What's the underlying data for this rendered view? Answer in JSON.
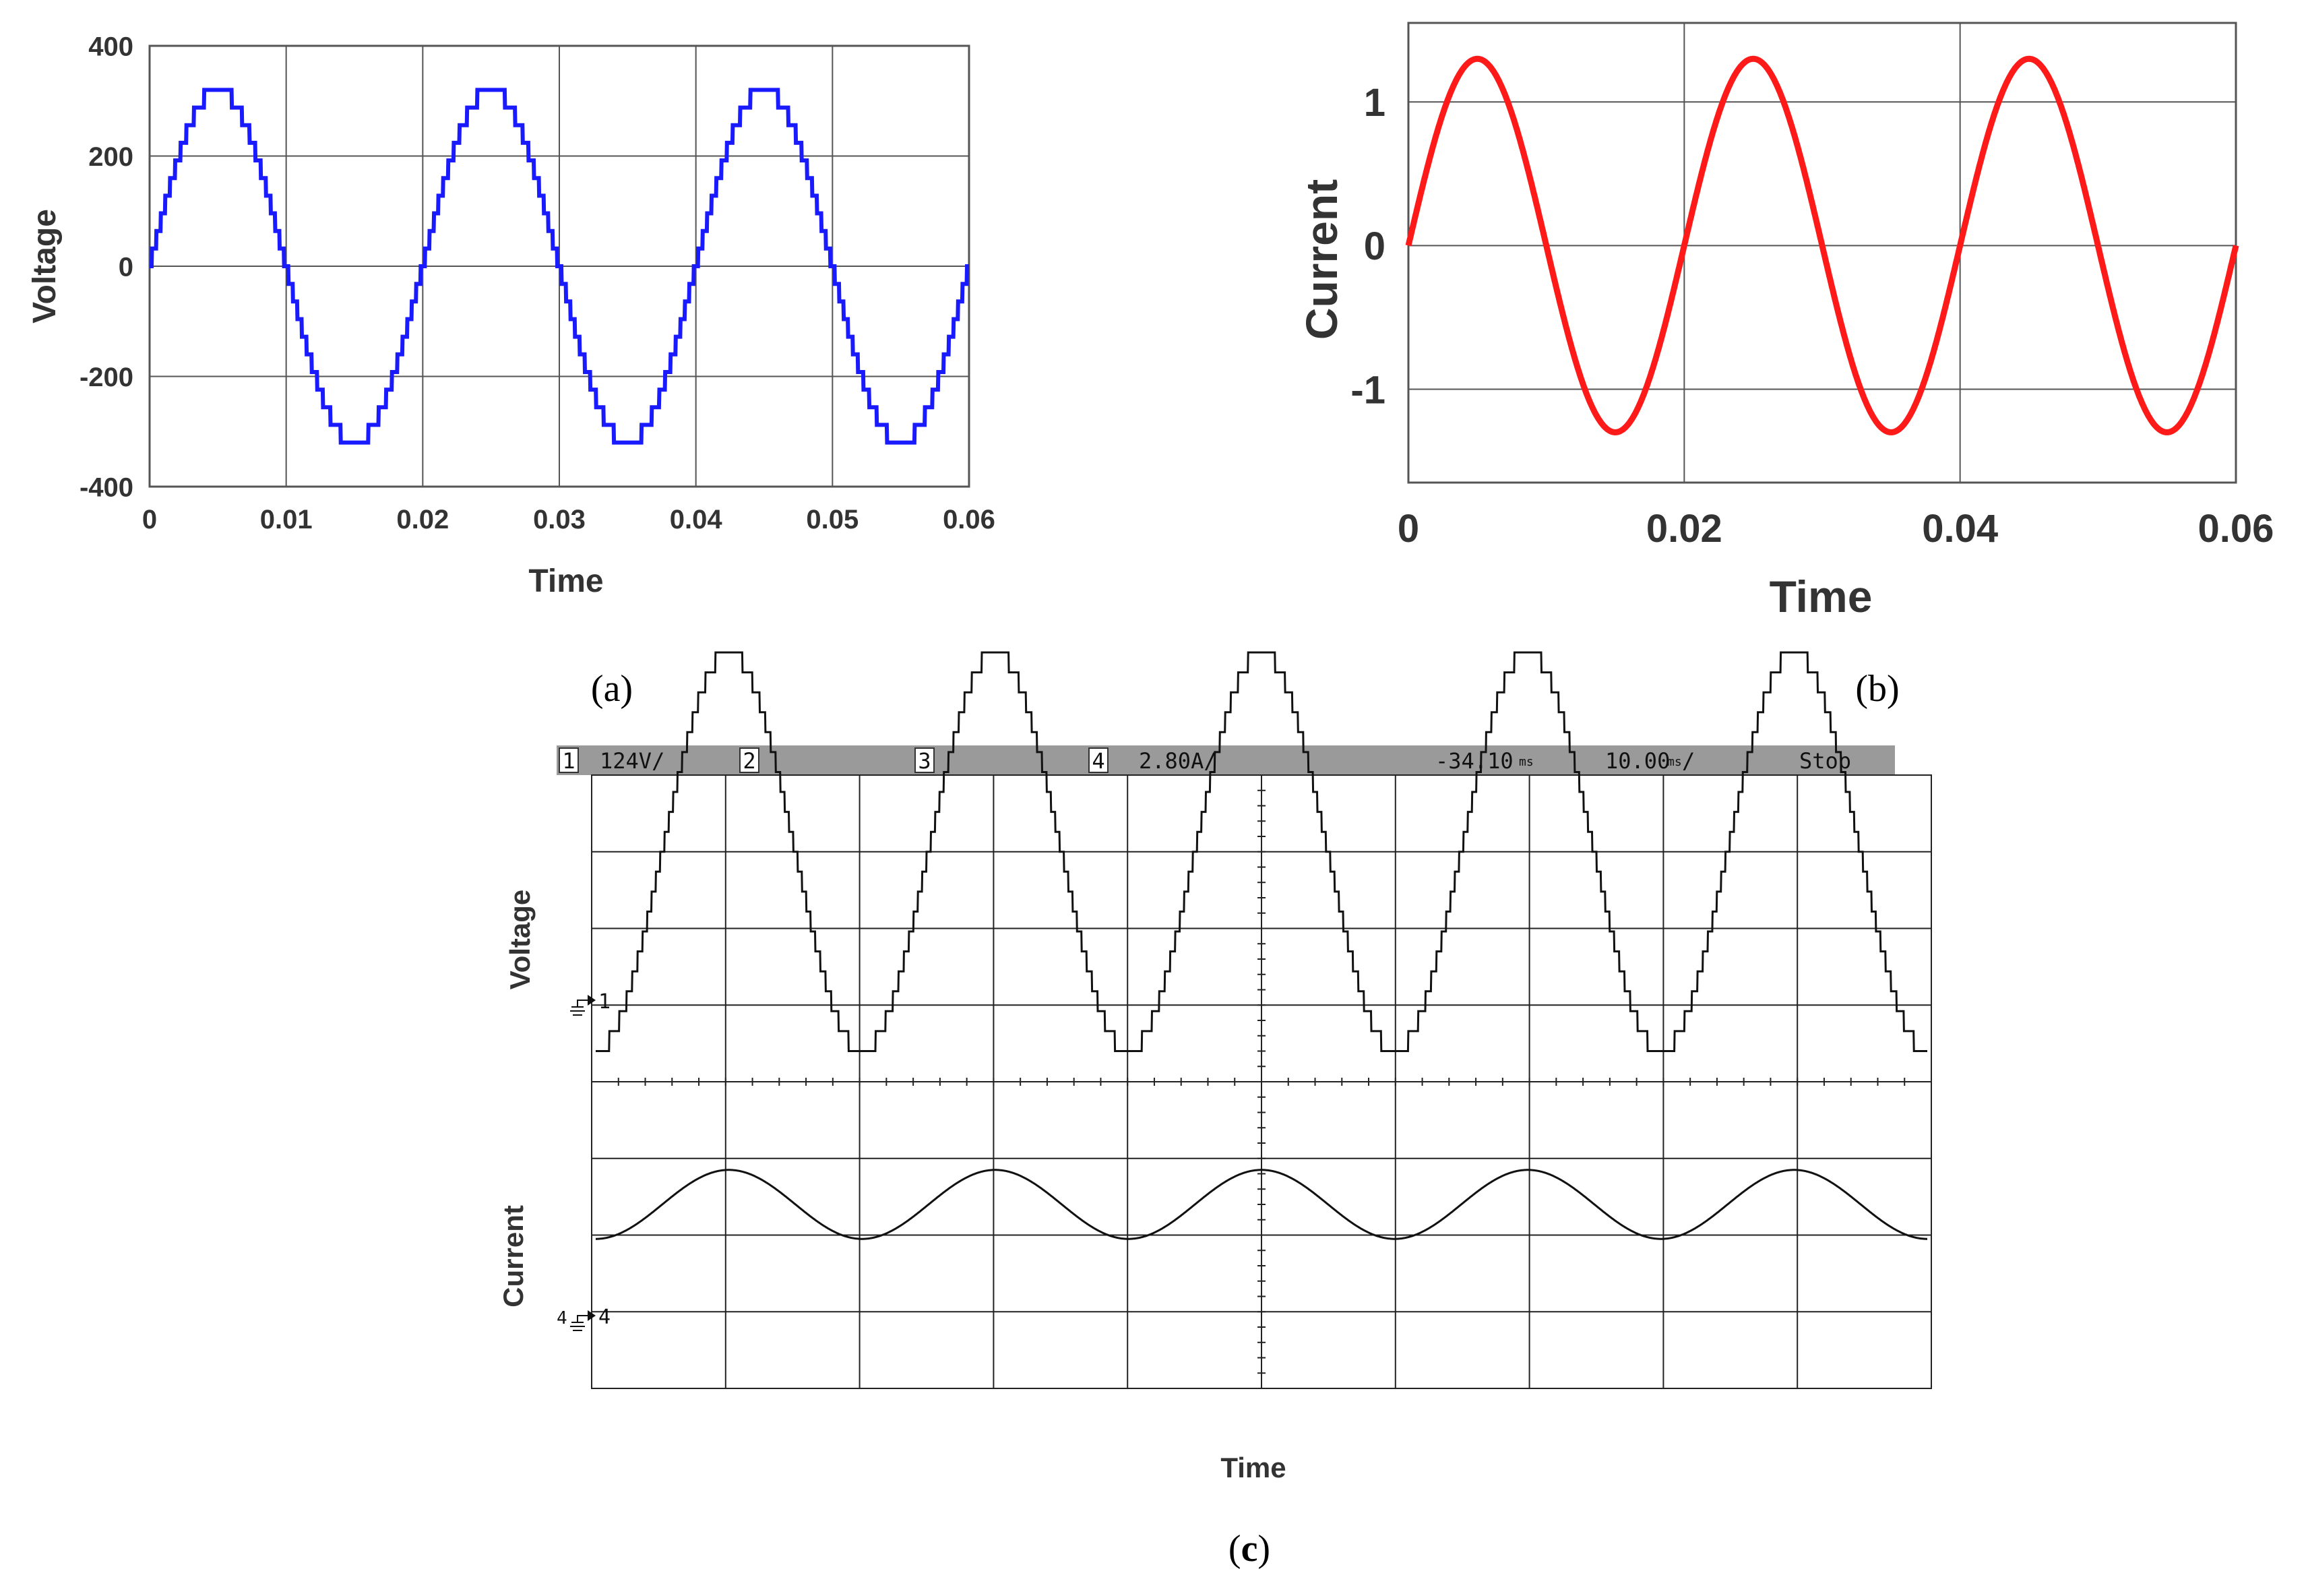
{
  "colors": {
    "voltage_sim": "#1a1aff",
    "current_sim": "#ff1a1a",
    "scope_trace": "#111111",
    "scope_bar": "#9a9a9a",
    "grid": "#555555"
  },
  "captions": {
    "a": "(a)",
    "b": "(b)",
    "c_open": "(",
    "c_letter": "c",
    "c_close": ")"
  },
  "chart_data": [
    {
      "id": "a",
      "type": "line",
      "xlabel": "Time",
      "ylabel": "Voltage",
      "xlim": [
        0,
        0.06
      ],
      "ylim": [
        -400,
        400
      ],
      "xticks": [
        "0",
        "0.01",
        "0.02",
        "0.03",
        "0.04",
        "0.05",
        "0.06"
      ],
      "yticks": [
        "400",
        "200",
        "0",
        "-200",
        "-400"
      ],
      "grid": true,
      "series": [
        {
          "waveform": "staircase sine",
          "frequency_hz": 50,
          "amplitude": 320,
          "levels_per_quarter": 10,
          "x_range": [
            0,
            0.06
          ]
        }
      ]
    },
    {
      "id": "b",
      "type": "line",
      "xlabel": "Time",
      "ylabel": "Current",
      "xlim": [
        0,
        0.06
      ],
      "ylim": [
        -1.65,
        1.55
      ],
      "xticks": [
        "0",
        "0.02",
        "0.04",
        "0.06"
      ],
      "yticks": [
        "1",
        "0",
        "-1"
      ],
      "grid": true,
      "series": [
        {
          "waveform": "sine",
          "frequency_hz": 50,
          "amplitude": 1.3,
          "x_range": [
            0,
            0.06
          ]
        }
      ]
    },
    {
      "id": "c",
      "type": "line",
      "xlabel": "Time",
      "ylabel_voltage": "Voltage",
      "ylabel_current": "Current",
      "grid": true,
      "divisions_x": 10,
      "divisions_y": 8,
      "series": [
        {
          "name": "Voltage",
          "waveform": "staircase sine",
          "channel": "1",
          "cycles": 5,
          "amplitude_div": 2.6,
          "center_div": 3.0,
          "levels_per_quarter": 10
        },
        {
          "name": "Current",
          "waveform": "sine",
          "channel": "4",
          "cycles": 5,
          "amplitude_div": 0.45,
          "center_div": -1.6
        }
      ]
    }
  ],
  "scope": {
    "ch1_num": "1",
    "ch1_scale": "124V/",
    "ch2_num": "2",
    "ch3_num": "3",
    "ch4_num": "4",
    "ch4_scale": "2.80A/",
    "delay": "-34.10",
    "delay_unit": "ms",
    "timebase": "10.00",
    "timebase_unit": "ms",
    "timebase_suffix": "/",
    "run_state": "Stop",
    "ch1_marker": "1",
    "ch4_marker": "4",
    "ch4_marker_left": "4"
  }
}
